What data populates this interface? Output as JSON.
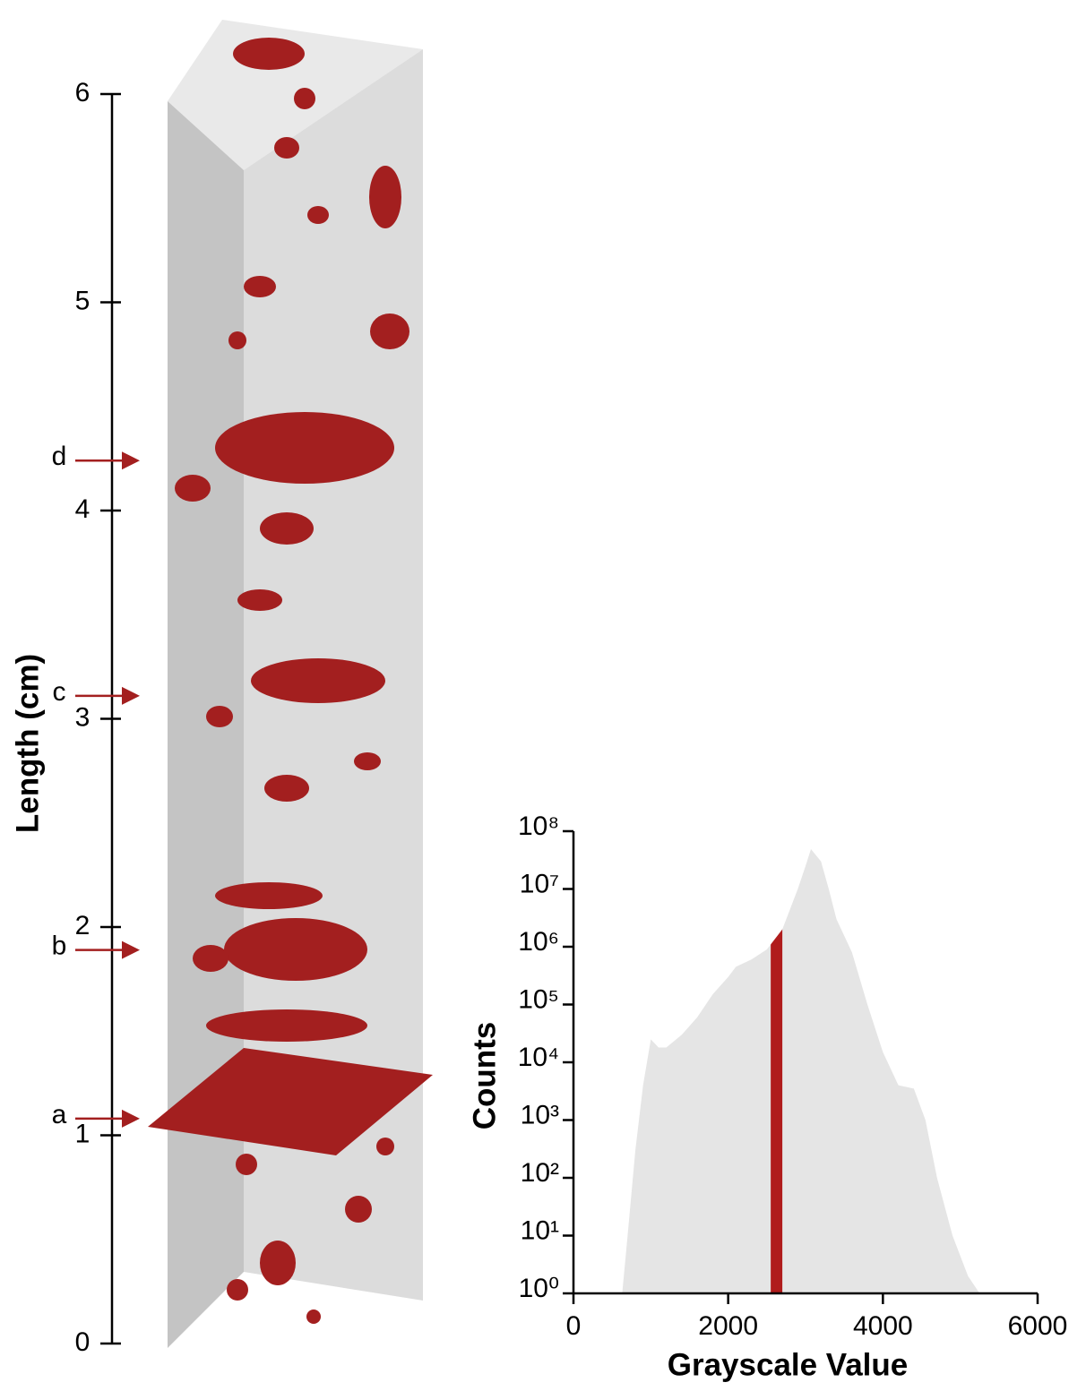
{
  "chart_data": [
    {
      "type": "scale-bar",
      "ylabel": "Length (cm)",
      "ylim": [
        0,
        6
      ],
      "yticks": [
        0,
        1,
        2,
        3,
        4,
        5,
        6
      ],
      "color": "#a31f1f",
      "annotations": [
        {
          "label": "a",
          "value": 1.08
        },
        {
          "label": "b",
          "value": 1.89
        },
        {
          "label": "c",
          "value": 3.11
        },
        {
          "label": "d",
          "value": 4.24
        }
      ]
    },
    {
      "type": "area",
      "xlabel": "Grayscale Value",
      "ylabel": "Counts",
      "log_y": true,
      "color": "#e5e5e5",
      "x": [
        630,
        700,
        800,
        900,
        1000,
        1100,
        1200,
        1400,
        1600,
        1800,
        2000,
        2100,
        2300,
        2500,
        2700,
        2900,
        3000,
        3070,
        3200,
        3300,
        3400,
        3600,
        3800,
        4000,
        4200,
        4400,
        4550,
        4700,
        4900,
        5100,
        5250
      ],
      "values": [
        1,
        10,
        300,
        4000,
        25000,
        18000,
        18000,
        30000,
        60000,
        150000,
        300000,
        450000,
        600000,
        900000,
        2000000,
        10000000,
        25000000,
        49000000,
        30000000,
        10000000,
        3000000,
        800000,
        100000,
        15000,
        4000,
        3500,
        1000,
        100,
        10,
        2,
        1
      ],
      "highlight_range": [
        2550,
        2700
      ],
      "highlight_color": "#b01c1c",
      "xlim": [
        0,
        6000
      ],
      "xticks": [
        0,
        2000,
        4000,
        6000
      ],
      "ylim": [
        1,
        100000000
      ],
      "yticks": [
        {
          "value": 1,
          "label": "10⁰"
        },
        {
          "value": 10,
          "label": "10¹"
        },
        {
          "value": 100,
          "label": "10²"
        },
        {
          "value": 1000,
          "label": "10³"
        },
        {
          "value": 10000,
          "label": "10⁴"
        },
        {
          "value": 100000,
          "label": "10⁵"
        },
        {
          "value": 1000000,
          "label": "10⁶"
        },
        {
          "value": 10000000,
          "label": "10⁷"
        },
        {
          "value": 100000000,
          "label": "10⁸"
        }
      ]
    }
  ]
}
